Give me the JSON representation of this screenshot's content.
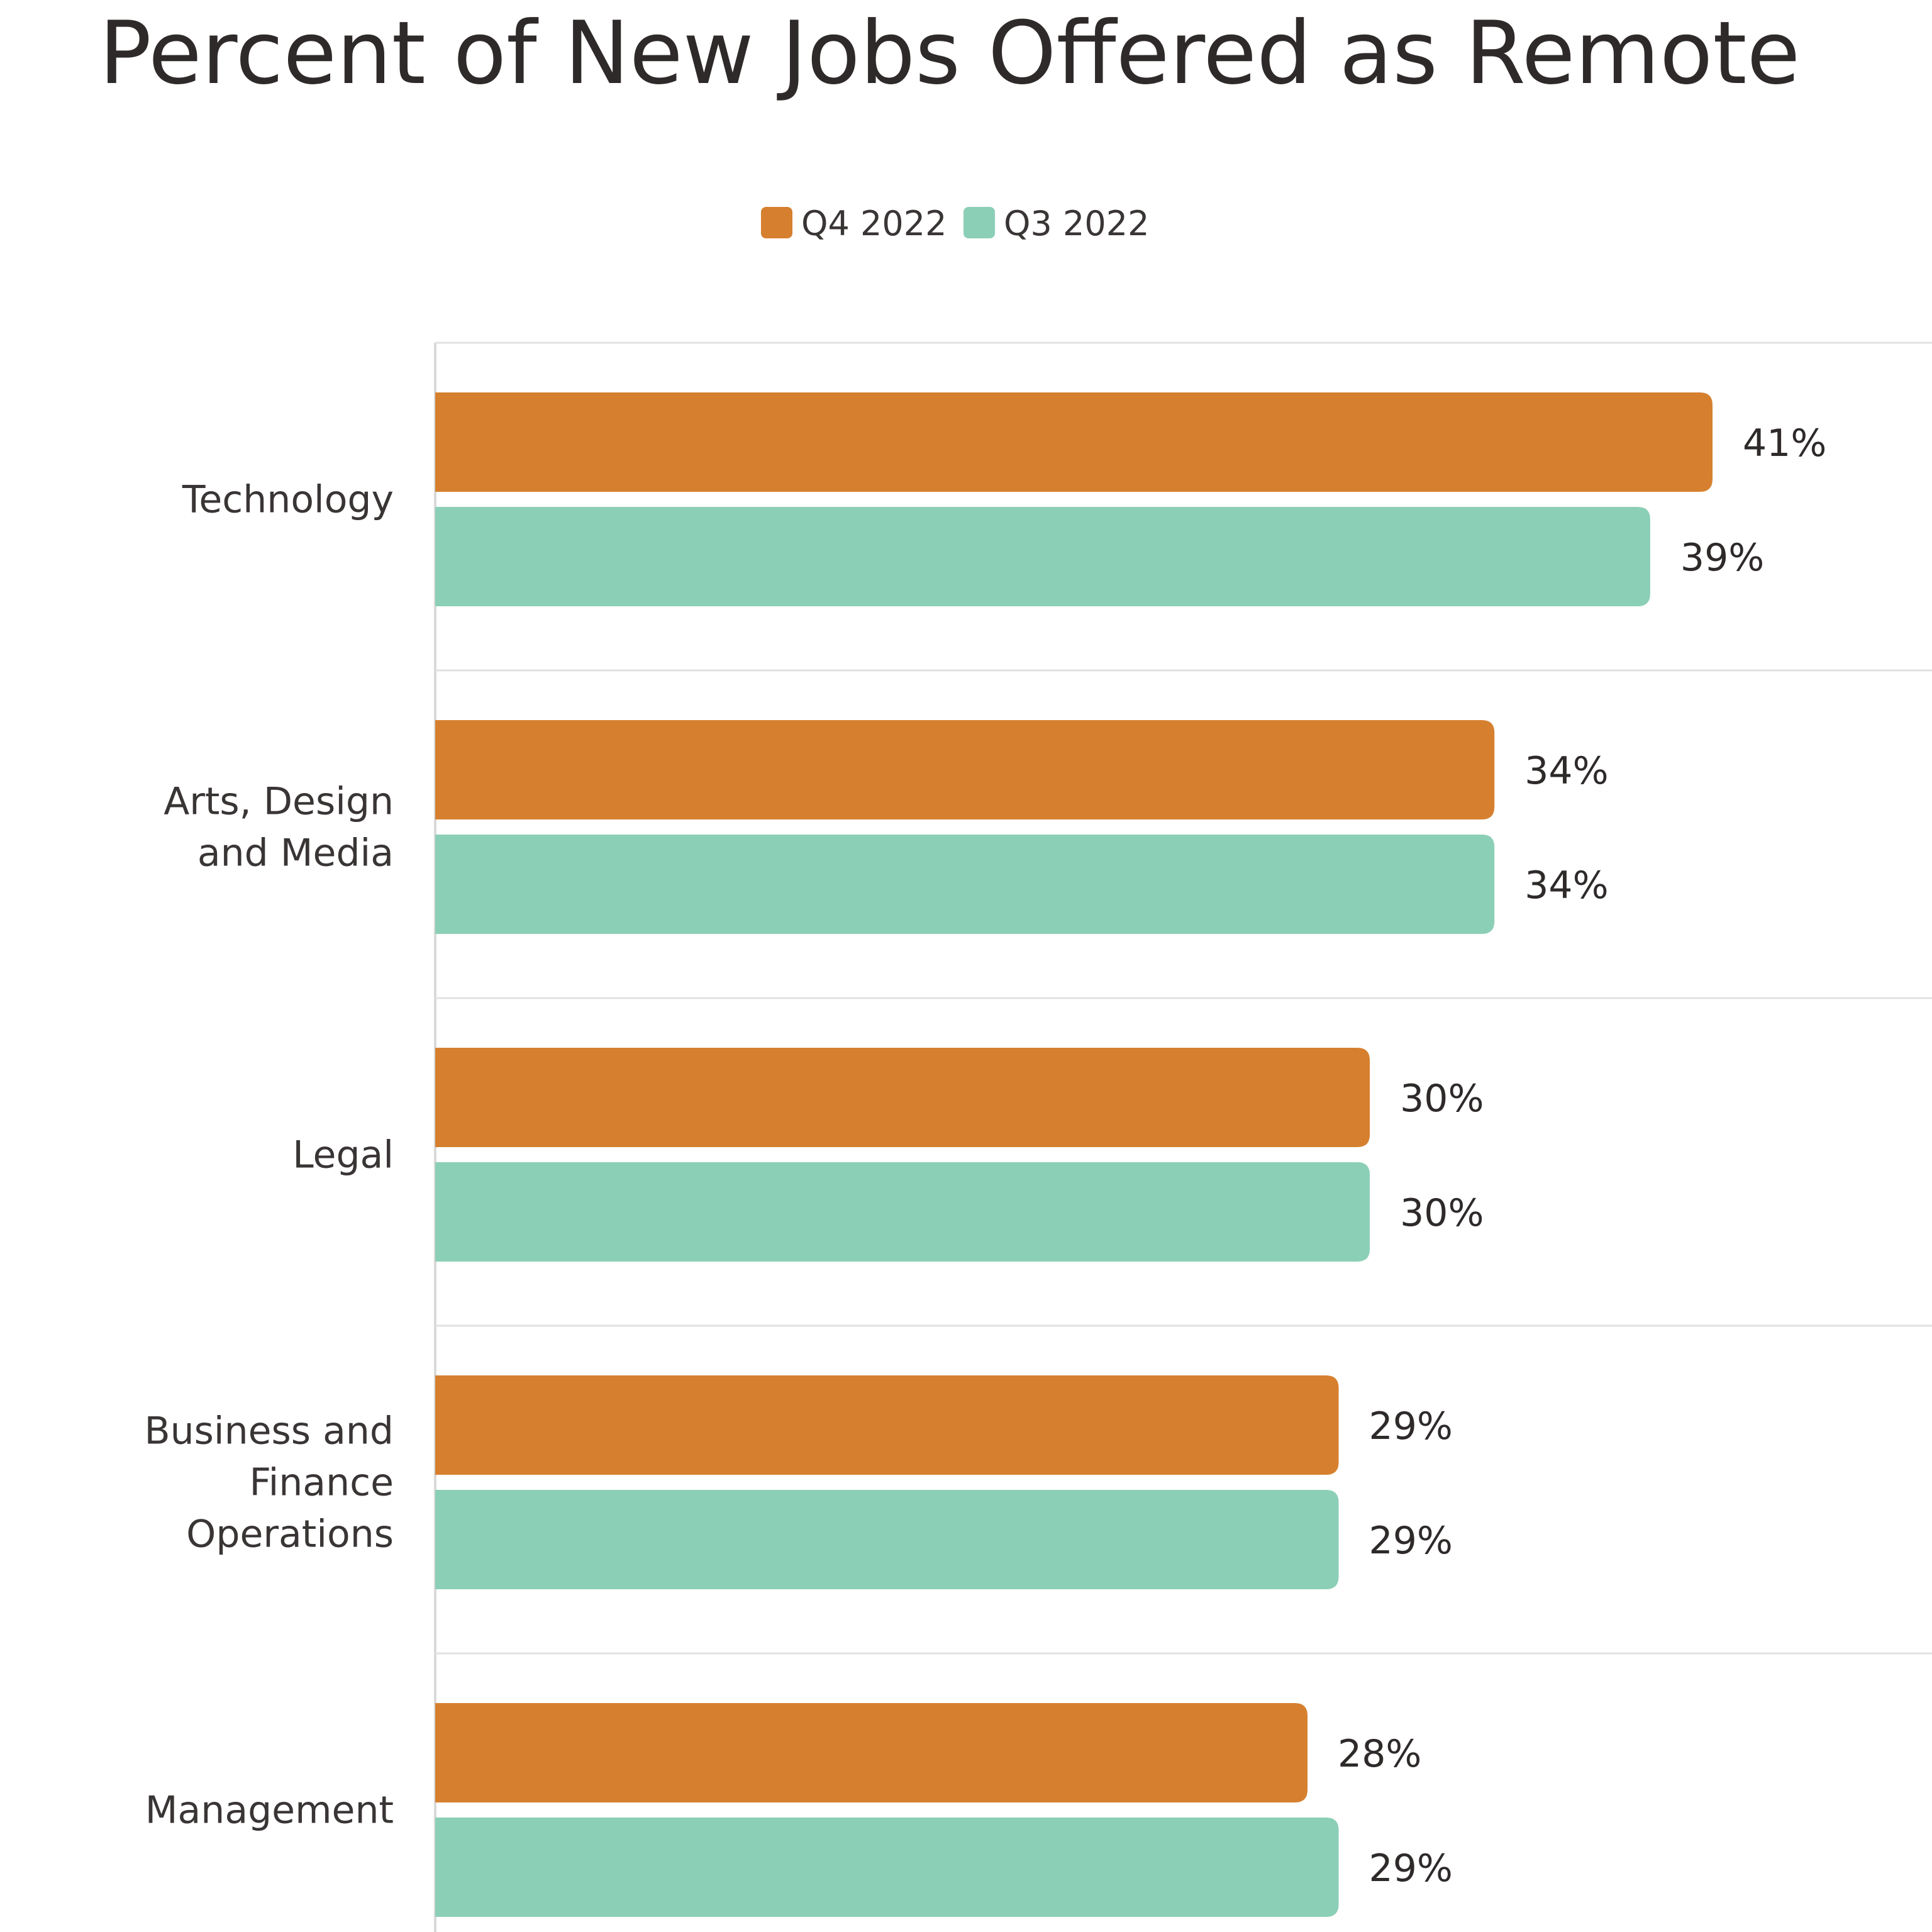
{
  "chart_data": {
    "type": "bar",
    "orientation": "horizontal",
    "title": "Percent of New Jobs Offered as Remote",
    "categories": [
      [
        "Technology"
      ],
      [
        "Arts, Design",
        "and Media"
      ],
      [
        "Legal"
      ],
      [
        "Business and",
        "Finance",
        "Operations"
      ],
      [
        "Management"
      ]
    ],
    "series": [
      {
        "name": "Q4 2022",
        "color": "#D6802F",
        "values": [
          41,
          34,
          30,
          29,
          28
        ],
        "labels": [
          "41%",
          "34%",
          "30%",
          "29%",
          "28%"
        ]
      },
      {
        "name": "Q3 2022",
        "color": "#8BCFB6",
        "values": [
          39,
          34,
          30,
          29,
          29
        ],
        "labels": [
          "39%",
          "34%",
          "30%",
          "29%",
          "29%"
        ]
      }
    ],
    "xlim": [
      0,
      50
    ],
    "grid": true,
    "legend_position": "top-center",
    "value_unit": "%"
  }
}
